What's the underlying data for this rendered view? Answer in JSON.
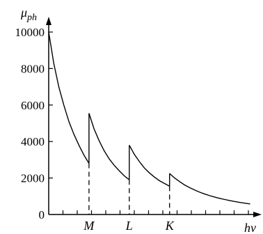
{
  "chart_data": {
    "type": "line",
    "ylabel": "μ",
    "ylabel_sub": "ph",
    "xlabel": "hν",
    "ylim": [
      0,
      10000
    ],
    "y_ticks": [
      0,
      2000,
      4000,
      6000,
      8000,
      10000
    ],
    "y_tick_labels": [
      "0",
      "2000",
      "4000",
      "6000",
      "8000",
      "10000"
    ],
    "x_minor_ticks": 14,
    "grid": false,
    "legend": "none",
    "edges": [
      {
        "label": "M",
        "x": 4,
        "below": 2800,
        "above": 5550
      },
      {
        "label": "L",
        "x": 8,
        "below": 1900,
        "above": 3800
      },
      {
        "label": "K",
        "x": 12,
        "below": 1550,
        "above": 2250
      }
    ],
    "series": [
      {
        "segments": [
          {
            "x": [
              0,
              0.5,
              1,
              1.5,
              2,
              2.5,
              3,
              3.5,
              4
            ],
            "y": [
              10000,
              8300,
              7000,
              6000,
              5100,
              4400,
              3800,
              3250,
              2800
            ]
          },
          {
            "x": [
              4,
              4.5,
              5,
              5.5,
              6,
              6.5,
              7,
              7.5,
              8
            ],
            "y": [
              5550,
              4700,
              4050,
              3500,
              3050,
              2700,
              2400,
              2120,
              1900
            ]
          },
          {
            "x": [
              8,
              8.5,
              9,
              9.5,
              10,
              10.5,
              11,
              11.5,
              12
            ],
            "y": [
              3800,
              3300,
              2900,
              2550,
              2280,
              2050,
              1850,
              1700,
              1550
            ]
          },
          {
            "x": [
              12,
              12.5,
              13,
              13.5,
              14,
              14.5,
              15,
              15.5,
              16,
              16.5,
              17,
              17.5,
              18,
              18.5,
              19,
              19.5,
              20
            ],
            "y": [
              2250,
              2000,
              1800,
              1620,
              1470,
              1340,
              1220,
              1120,
              1030,
              950,
              880,
              820,
              760,
              710,
              660,
              620,
              580
            ]
          }
        ]
      }
    ]
  }
}
